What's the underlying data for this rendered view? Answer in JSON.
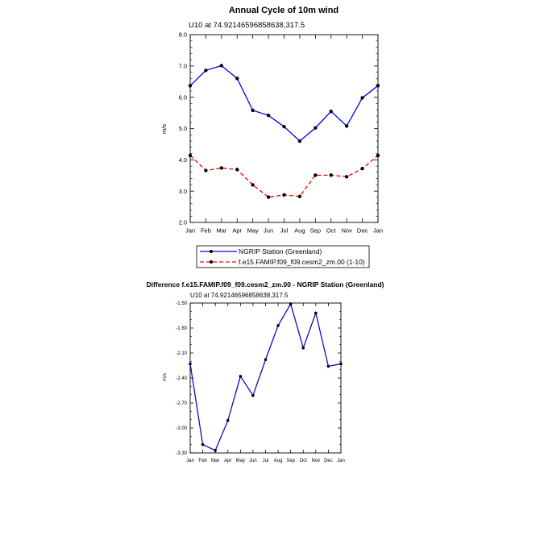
{
  "colors": {
    "model": "#ff0000",
    "station": "#0000ff",
    "difference": "#2200cc",
    "marker": "#000000"
  },
  "chart_data": [
    {
      "type": "line",
      "title": "Annual Cycle of 10m wind",
      "subtitle": "U10 at 74.92146596858638,317.5",
      "ylabel": "m/s",
      "xlabel": "",
      "categories": [
        "Jan",
        "Feb",
        "Mar",
        "Apr",
        "May",
        "Jun",
        "Jul",
        "Aug",
        "Sep",
        "Oct",
        "Nov",
        "Dec",
        "Jan"
      ],
      "ylim": [
        2.0,
        8.0
      ],
      "yticks": [
        "2.0",
        "3.0",
        "4.0",
        "5.0",
        "6.0",
        "7.0",
        "8.0"
      ],
      "legend_position": "bottom",
      "grid": false,
      "series": [
        {
          "name": "NGRIP Station (Greenland)",
          "style": "solid",
          "values": [
            6.37,
            6.86,
            7.01,
            6.6,
            5.58,
            5.42,
            5.06,
            4.6,
            5.02,
            5.55,
            5.08,
            5.98,
            6.37
          ]
        },
        {
          "name": "f.e15.FAMIP.f09_f09.cesm2_zm.00 (1-10)",
          "style": "dashed",
          "values": [
            4.14,
            3.66,
            3.74,
            3.69,
            3.2,
            2.81,
            2.88,
            2.83,
            3.51,
            3.51,
            3.46,
            3.72,
            4.14
          ]
        }
      ]
    },
    {
      "type": "line",
      "title": "Difference f.e15.FAMIP.f09_f09.cesm2_zm.00 - NGRIP Station (Greenland)",
      "subtitle": "U10 at 74.92146596858638,317.5",
      "ylabel": "m/s",
      "xlabel": "",
      "categories": [
        "Jan",
        "Feb",
        "Mar",
        "Apr",
        "May",
        "Jun",
        "Jul",
        "Aug",
        "Sep",
        "Oct",
        "Nov",
        "Dec",
        "Jan"
      ],
      "ylim": [
        -3.3,
        -1.5
      ],
      "yticks": [
        "-3.30",
        "-3.00",
        "-2.70",
        "-2.40",
        "-2.10",
        "-1.80",
        "-1.50"
      ],
      "grid": false,
      "series": [
        {
          "values": [
            -2.23,
            -3.2,
            -3.27,
            -2.91,
            -2.38,
            -2.61,
            -2.18,
            -1.77,
            -1.51,
            -2.04,
            -1.62,
            -2.26,
            -2.23
          ]
        }
      ]
    }
  ]
}
